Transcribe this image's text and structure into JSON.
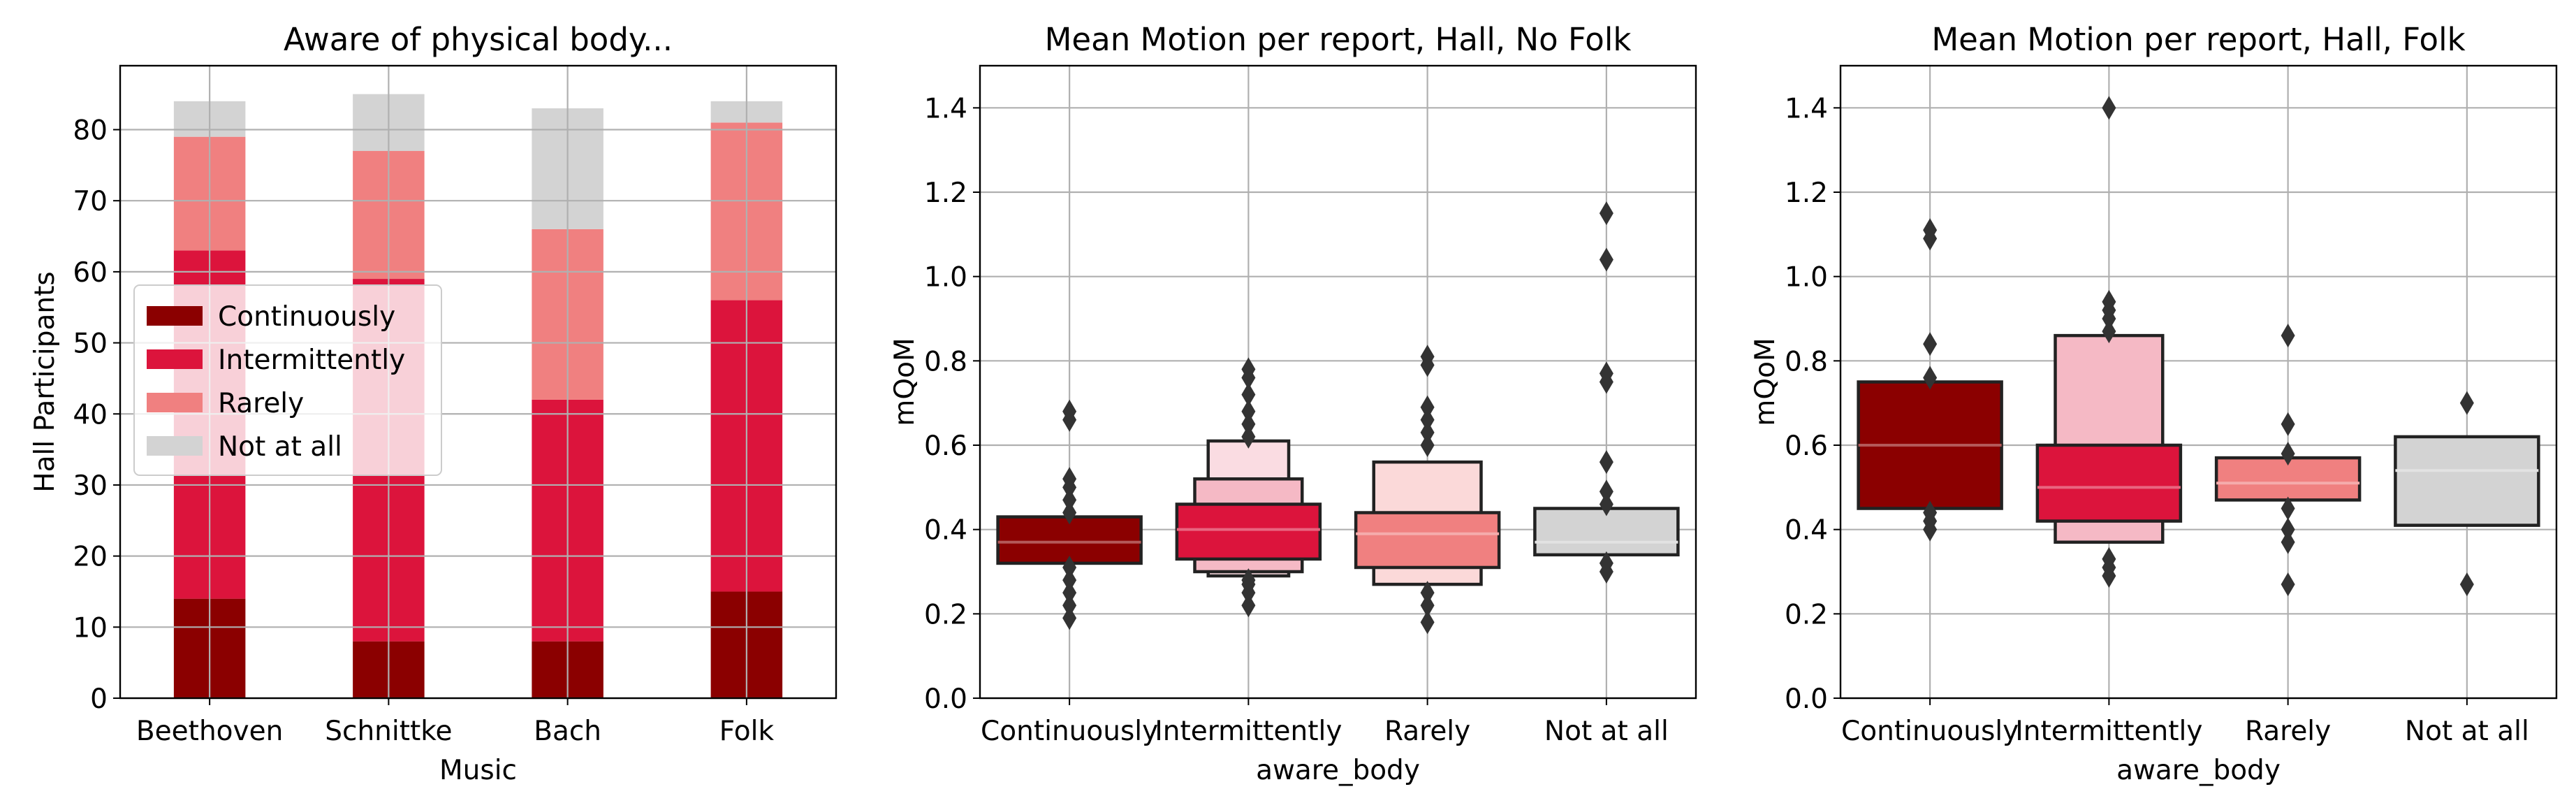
{
  "colors": {
    "continuously": "#8b0000",
    "intermittently": "#dc143c",
    "rarely": "#f08080",
    "not_at_all": "#d3d3d3",
    "grid": "#b0b0b0",
    "box_edge": "#222222",
    "outlier": "#333333"
  },
  "chart_data": [
    {
      "type": "bar",
      "stacked": true,
      "title": "Aware of physical body...",
      "xlabel": "Music",
      "ylabel": "Hall Participants",
      "categories": [
        "Beethoven",
        "Schnittke",
        "Bach",
        "Folk"
      ],
      "ylim": [
        0,
        89
      ],
      "yticks": [
        0,
        10,
        20,
        30,
        40,
        50,
        60,
        70,
        80
      ],
      "grid": true,
      "legend": {
        "placement": "center-left",
        "entries": [
          "Continuously",
          "Intermittently",
          "Rarely",
          "Not at all"
        ]
      },
      "series": [
        {
          "name": "Continuously",
          "color_key": "continuously",
          "values": [
            14,
            8,
            8,
            15
          ]
        },
        {
          "name": "Intermittently",
          "color_key": "intermittently",
          "values": [
            49,
            51,
            34,
            41
          ]
        },
        {
          "name": "Rarely",
          "color_key": "rarely",
          "values": [
            16,
            18,
            24,
            25
          ]
        },
        {
          "name": "Not at all",
          "color_key": "not_at_all",
          "values": [
            5,
            8,
            17,
            3
          ]
        }
      ]
    },
    {
      "type": "boxenplot",
      "title": "Mean Motion per report, Hall, No Folk",
      "xlabel": "aware_body",
      "ylabel": "mQoM",
      "categories": [
        "Continuously",
        "Intermittently",
        "Rarely",
        "Not at all"
      ],
      "ylim": [
        0,
        1.5
      ],
      "yticks": [
        "0.0",
        "0.2",
        "0.4",
        "0.6",
        "0.8",
        "1.0",
        "1.2",
        "1.4"
      ],
      "grid": true,
      "groups": [
        {
          "category": "Continuously",
          "color_key": "continuously",
          "median": 0.37,
          "boxes": [
            [
              0.32,
              0.43
            ]
          ],
          "outliers": [
            0.19,
            0.22,
            0.25,
            0.28,
            0.31,
            0.44,
            0.47,
            0.5,
            0.52,
            0.66,
            0.68
          ]
        },
        {
          "category": "Intermittently",
          "color_key": "intermittently",
          "median": 0.4,
          "boxes": [
            [
              0.33,
              0.46
            ],
            [
              0.3,
              0.52
            ],
            [
              0.29,
              0.61
            ]
          ],
          "outliers": [
            0.22,
            0.25,
            0.27,
            0.28,
            0.62,
            0.65,
            0.68,
            0.72,
            0.76,
            0.78
          ]
        },
        {
          "category": "Rarely",
          "color_key": "rarely",
          "median": 0.39,
          "boxes": [
            [
              0.31,
              0.44
            ],
            [
              0.27,
              0.56
            ]
          ],
          "outliers": [
            0.18,
            0.22,
            0.25,
            0.6,
            0.63,
            0.66,
            0.69,
            0.79,
            0.81
          ]
        },
        {
          "category": "Not at all",
          "color_key": "not_at_all",
          "median": 0.37,
          "boxes": [
            [
              0.34,
              0.45
            ]
          ],
          "outliers": [
            0.3,
            0.32,
            0.46,
            0.49,
            0.56,
            0.75,
            0.77,
            1.04,
            1.15
          ]
        }
      ]
    },
    {
      "type": "boxenplot",
      "title": "Mean Motion per report, Hall, Folk",
      "xlabel": "aware_body",
      "ylabel": "mQoM",
      "categories": [
        "Continuously",
        "Intermittently",
        "Rarely",
        "Not at all"
      ],
      "ylim": [
        0,
        1.5
      ],
      "yticks": [
        "0.0",
        "0.2",
        "0.4",
        "0.6",
        "0.8",
        "1.0",
        "1.2",
        "1.4"
      ],
      "grid": true,
      "groups": [
        {
          "category": "Continuously",
          "color_key": "continuously",
          "median": 0.6,
          "boxes": [
            [
              0.45,
              0.75
            ]
          ],
          "outliers": [
            0.4,
            0.42,
            0.44,
            0.76,
            0.84,
            1.09,
            1.11
          ]
        },
        {
          "category": "Intermittently",
          "color_key": "intermittently",
          "median": 0.5,
          "boxes": [
            [
              0.42,
              0.6
            ],
            [
              0.37,
              0.86
            ]
          ],
          "outliers": [
            0.29,
            0.31,
            0.33,
            0.87,
            0.9,
            0.92,
            0.94,
            1.4
          ]
        },
        {
          "category": "Rarely",
          "color_key": "rarely",
          "median": 0.51,
          "boxes": [
            [
              0.47,
              0.57
            ]
          ],
          "outliers": [
            0.27,
            0.37,
            0.4,
            0.45,
            0.58,
            0.65,
            0.86
          ]
        },
        {
          "category": "Not at all",
          "color_key": "not_at_all",
          "median": 0.54,
          "boxes": [
            [
              0.41,
              0.62
            ]
          ],
          "outliers": [
            0.27,
            0.7
          ]
        }
      ]
    }
  ]
}
